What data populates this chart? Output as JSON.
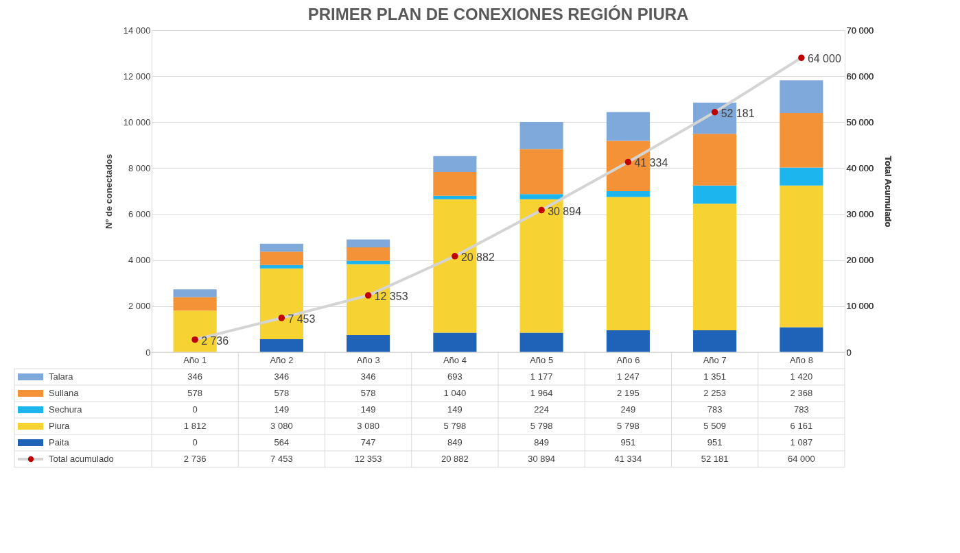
{
  "chart_data": {
    "type": "bar",
    "title": "PRIMER PLAN DE CONEXIONES REGIÓN PIURA",
    "ylabel": "N° de conectados",
    "y2label": "Total Acumulado",
    "categories": [
      "Año 1",
      "Año 2",
      "Año 3",
      "Año 4",
      "Año 5",
      "Año 6",
      "Año 7",
      "Año 8"
    ],
    "stacked": true,
    "series": [
      {
        "name": "Paita",
        "color": "#1f63b8",
        "values": [
          0,
          564,
          747,
          849,
          849,
          951,
          951,
          1087
        ],
        "value_labels": [
          "0",
          "564",
          "747",
          "849",
          "849",
          "951",
          "951",
          "1 087"
        ]
      },
      {
        "name": "Piura",
        "color": "#f7d233",
        "values": [
          1812,
          3080,
          3080,
          5798,
          5798,
          5798,
          5509,
          6161
        ],
        "value_labels": [
          "1 812",
          "3 080",
          "3 080",
          "5 798",
          "5 798",
          "5 798",
          "5 509",
          "6 161"
        ]
      },
      {
        "name": "Sechura",
        "color": "#1cb5ee",
        "values": [
          0,
          149,
          149,
          149,
          224,
          249,
          783,
          783
        ],
        "value_labels": [
          "0",
          "149",
          "149",
          "149",
          "224",
          "249",
          "783",
          "783"
        ]
      },
      {
        "name": "Sullana",
        "color": "#f39237",
        "values": [
          578,
          578,
          578,
          1040,
          1964,
          2195,
          2253,
          2368
        ],
        "value_labels": [
          "578",
          "578",
          "578",
          "1 040",
          "1 964",
          "2 195",
          "2 253",
          "2 368"
        ]
      },
      {
        "name": "Talara",
        "color": "#80a9db",
        "values": [
          346,
          346,
          346,
          693,
          1177,
          1247,
          1351,
          1420
        ],
        "value_labels": [
          "346",
          "346",
          "346",
          "693",
          "1 177",
          "1 247",
          "1 351",
          "1 420"
        ]
      },
      {
        "name": "Total acumulado",
        "type": "line",
        "axis": "y2",
        "color": "#d4d4d4",
        "marker": "circle",
        "line_style": "solid",
        "colors": [
          "#c00000",
          "#c00000",
          "#c00000",
          "#c00000",
          "#c00000",
          "#c00000",
          "#c00000",
          "#c00000"
        ],
        "values": [
          2736,
          7453,
          12353,
          20882,
          30894,
          41334,
          52181,
          64000
        ],
        "value_labels": [
          "2 736",
          "7 453",
          "12 353",
          "20 882",
          "30 894",
          "41 334",
          "52 181",
          "64 000"
        ]
      }
    ],
    "ylim": [
      0,
      14000
    ],
    "yticks": [
      0,
      {
        "value": 2000,
        "label": "2 000"
      },
      {
        "value": 4000,
        "label": "4 000"
      },
      {
        "value": 6000,
        "label": "6 000"
      },
      {
        "value": 8000,
        "label": "8 000"
      },
      {
        "value": 10000,
        "label": "10 000"
      },
      {
        "value": 12000,
        "label": "12 000"
      },
      {
        "value": 14000,
        "label": "14 000"
      }
    ],
    "y2lim": [
      0,
      70000
    ],
    "y2ticks": [
      0,
      {
        "value": 10000,
        "label": "10 000"
      },
      {
        "value": 20000,
        "label": "20 000"
      },
      {
        "value": 30000,
        "label": "30 000"
      },
      {
        "value": 40000,
        "label": "40 000"
      },
      {
        "value": 50000,
        "label": "50 000"
      },
      {
        "value": 60000,
        "label": "60 000"
      },
      {
        "value": 70000,
        "label": "70 000"
      }
    ],
    "grid": "y",
    "legend": "bottom"
  }
}
